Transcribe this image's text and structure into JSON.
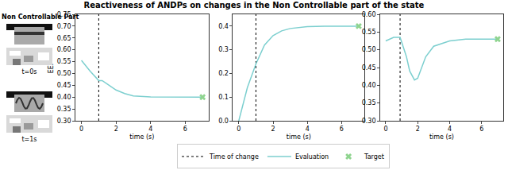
{
  "title": "Reactiveness of ANDPs on changes in the Non Controllable part of the state",
  "side_panel": {
    "heading": "Non Controllable Part",
    "frames": [
      {
        "label": "t=0s"
      },
      {
        "label": "t=1s"
      }
    ]
  },
  "chart_data": [
    {
      "type": "line",
      "xlabel": "time (s)",
      "ylabel": "EEF",
      "legend": "bottom",
      "grid": false,
      "x": [
        0,
        0.5,
        1,
        1.2,
        1.5,
        2,
        2.5,
        3,
        4,
        5,
        6,
        7
      ],
      "series": [
        {
          "name": "Evaluation",
          "color": "#7ccfcf",
          "values": [
            0.555,
            0.51,
            0.47,
            0.47,
            0.455,
            0.43,
            0.415,
            0.405,
            0.401,
            0.4,
            0.4,
            0.4
          ]
        }
      ],
      "target": {
        "name": "Target",
        "color": "#8fd48f",
        "marker": "x",
        "x": 7,
        "y": 0.4
      },
      "time_of_change": {
        "name": "Time of change",
        "color": "#000000",
        "line_style": "dotted",
        "x": 1
      },
      "xlim": [
        -0.35,
        7.35
      ],
      "xticks": [
        0,
        2,
        4,
        6
      ],
      "ylim": [
        0.3,
        0.75
      ],
      "yticks": [
        {
          "value": 0.3,
          "label": "0.30"
        },
        {
          "value": 0.35,
          "label": "0.35"
        },
        {
          "value": 0.4,
          "label": "0.40"
        },
        {
          "value": 0.45,
          "label": "0.45"
        },
        {
          "value": 0.5,
          "label": "0.50"
        },
        {
          "value": 0.55,
          "label": "0.55"
        },
        {
          "value": 0.6,
          "label": "0.60"
        },
        {
          "value": 0.65,
          "label": "0.65"
        },
        {
          "value": 0.7,
          "label": "0.70"
        },
        {
          "value": 0.75,
          "label": "0.75"
        }
      ]
    },
    {
      "type": "line",
      "xlabel": "time (s)",
      "grid": false,
      "x": [
        0,
        0.5,
        1,
        1.5,
        2,
        2.5,
        3,
        4,
        5,
        6,
        7
      ],
      "series": [
        {
          "name": "Evaluation",
          "color": "#7ccfcf",
          "values": [
            0.0,
            0.14,
            0.24,
            0.32,
            0.36,
            0.38,
            0.39,
            0.398,
            0.4,
            0.4,
            0.4
          ]
        }
      ],
      "target": {
        "name": "Target",
        "color": "#8fd48f",
        "marker": "x",
        "x": 7,
        "y": 0.4
      },
      "time_of_change": {
        "name": "Time of change",
        "color": "#000000",
        "line_style": "dotted",
        "x": 1
      },
      "xlim": [
        -0.35,
        7.35
      ],
      "xticks": [
        0,
        2,
        4,
        6
      ],
      "ylim": [
        0.0,
        0.45
      ],
      "yticks": [
        {
          "value": 0.0,
          "label": "0.0"
        },
        {
          "value": 0.1,
          "label": "0.1"
        },
        {
          "value": 0.2,
          "label": "0.2"
        },
        {
          "value": 0.3,
          "label": "0.3"
        },
        {
          "value": 0.4,
          "label": "0.4"
        }
      ]
    },
    {
      "type": "line",
      "xlabel": "time (s)",
      "grid": false,
      "x": [
        0,
        0.5,
        0.9,
        1.3,
        1.5,
        1.8,
        2,
        2.5,
        3,
        4,
        5,
        7
      ],
      "series": [
        {
          "name": "Evaluation",
          "color": "#7ccfcf",
          "values": [
            0.525,
            0.535,
            0.535,
            0.48,
            0.44,
            0.415,
            0.42,
            0.48,
            0.51,
            0.525,
            0.53,
            0.53
          ]
        }
      ],
      "target": {
        "name": "Target",
        "color": "#8fd48f",
        "marker": "x",
        "x": 7,
        "y": 0.53
      },
      "time_of_change": {
        "name": "Time of change",
        "color": "#000000",
        "line_style": "dotted",
        "x": 0.9
      },
      "xlim": [
        -0.35,
        7.35
      ],
      "xticks": [
        0,
        2,
        4,
        6
      ],
      "ylim": [
        0.3,
        0.6
      ],
      "yticks": [
        {
          "value": 0.3,
          "label": "0.30"
        },
        {
          "value": 0.35,
          "label": "0.35"
        },
        {
          "value": 0.4,
          "label": "0.40"
        },
        {
          "value": 0.45,
          "label": "0.45"
        },
        {
          "value": 0.5,
          "label": "0.50"
        },
        {
          "value": 0.55,
          "label": "0.55"
        },
        {
          "value": 0.6,
          "label": "0.60"
        }
      ]
    }
  ]
}
